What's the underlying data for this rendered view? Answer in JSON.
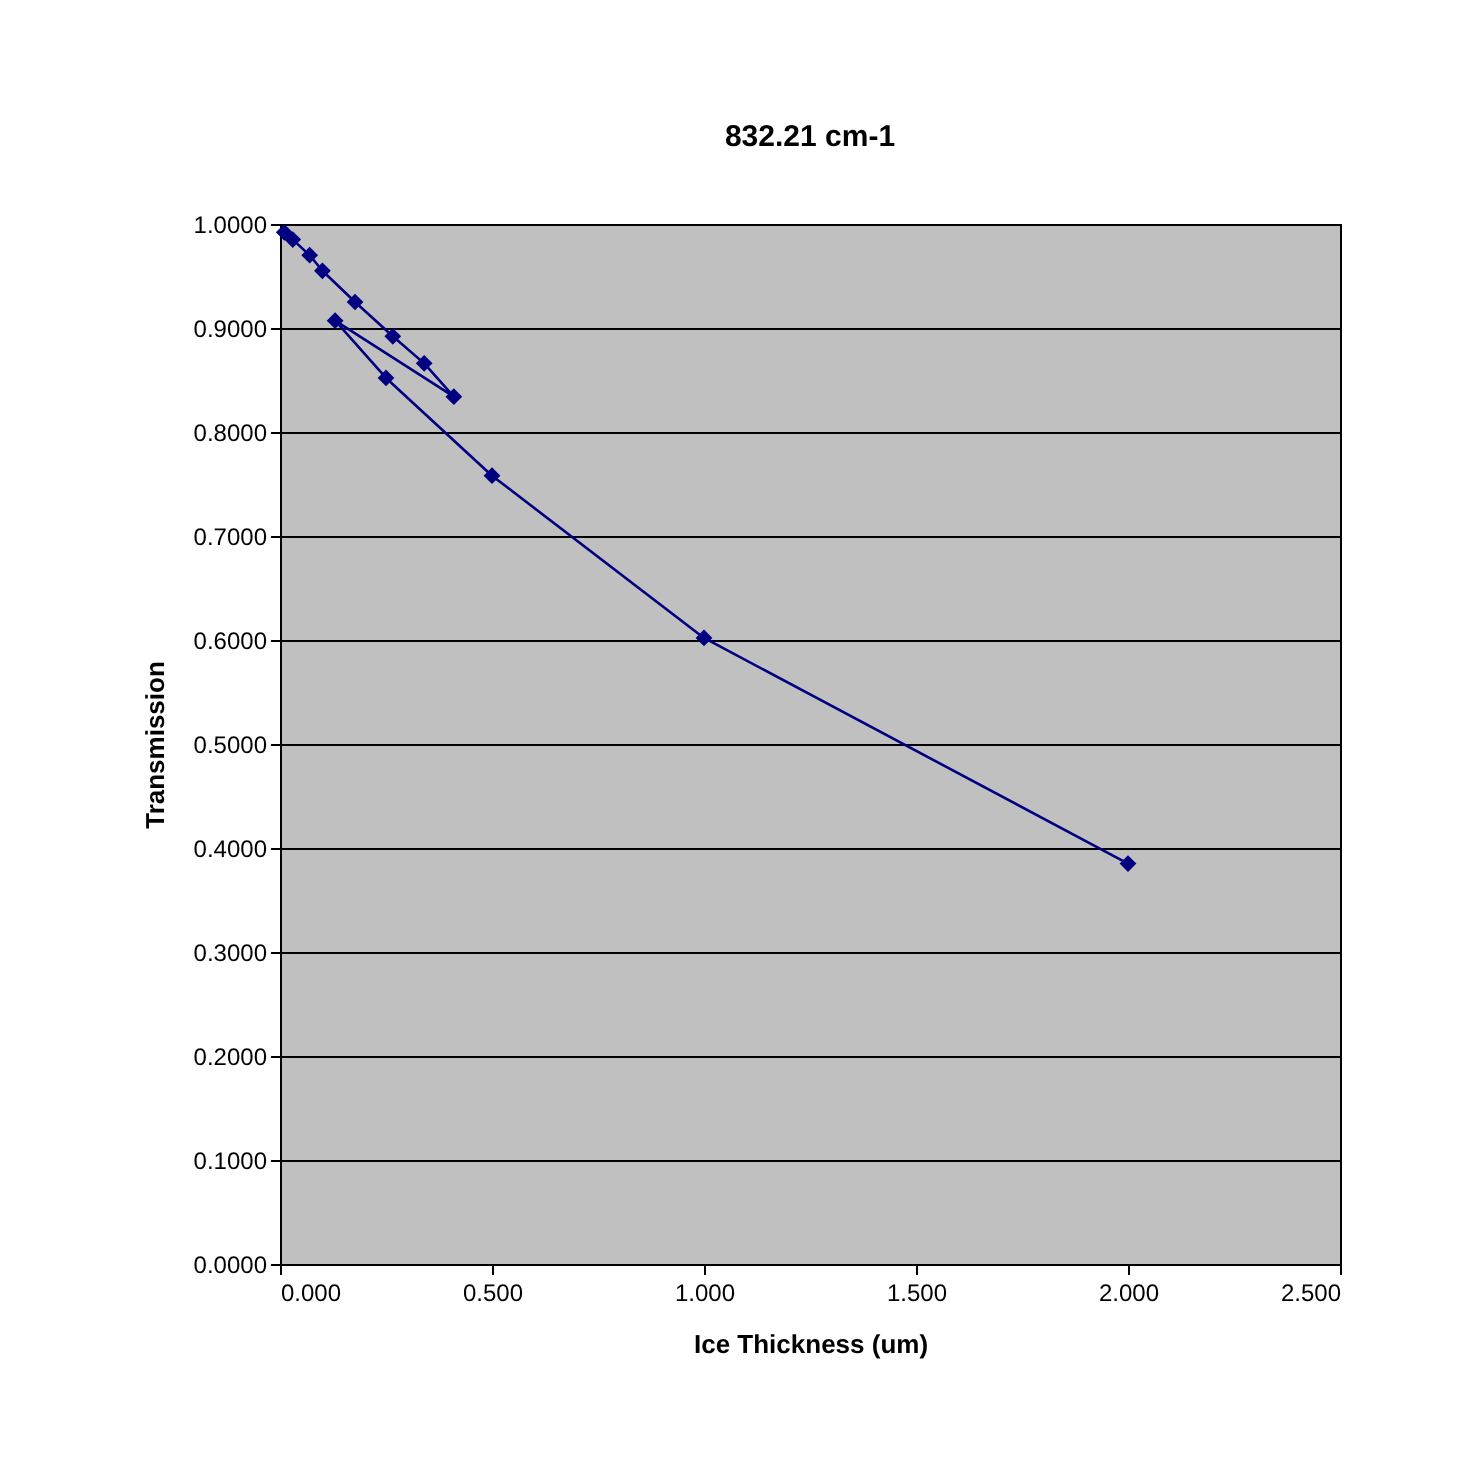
{
  "chart_data": {
    "type": "line",
    "title": "832.21 cm-1",
    "xlabel": "Ice Thickness (um)",
    "ylabel": "Transmission",
    "x": [
      0.01,
      0.03,
      0.07,
      0.1,
      0.177,
      0.266,
      0.34,
      0.41,
      0.13,
      0.25,
      0.5,
      1.0,
      2.0
    ],
    "series": [
      {
        "color": "#000080",
        "values": [
          0.992,
          0.985,
          0.97,
          0.955,
          0.925,
          0.892,
          0.866,
          0.834,
          0.907,
          0.852,
          0.758,
          0.602,
          0.385
        ]
      }
    ],
    "marker": "diamond",
    "line_style": "solid",
    "grid": "y",
    "xlim": [
      0,
      2.5
    ],
    "ylim": [
      0,
      1
    ],
    "xticks": [
      {
        "value": 0,
        "label": "0.000"
      },
      {
        "value": 0.5,
        "label": "0.500"
      },
      {
        "value": 1,
        "label": "1.000"
      },
      {
        "value": 1.5,
        "label": "1.500"
      },
      {
        "value": 2,
        "label": "2.000"
      },
      {
        "value": 2.5,
        "label": "2.500"
      }
    ],
    "yticks": [
      {
        "value": 0,
        "label": "0.0000"
      },
      {
        "value": 0.1,
        "label": "0.1000"
      },
      {
        "value": 0.2,
        "label": "0.2000"
      },
      {
        "value": 0.3,
        "label": "0.3000"
      },
      {
        "value": 0.4,
        "label": "0.4000"
      },
      {
        "value": 0.5,
        "label": "0.5000"
      },
      {
        "value": 0.6,
        "label": "0.6000"
      },
      {
        "value": 0.7,
        "label": "0.7000"
      },
      {
        "value": 0.8,
        "label": "0.8000"
      },
      {
        "value": 0.9,
        "label": "0.9000"
      },
      {
        "value": 1,
        "label": "1.0000"
      }
    ]
  }
}
